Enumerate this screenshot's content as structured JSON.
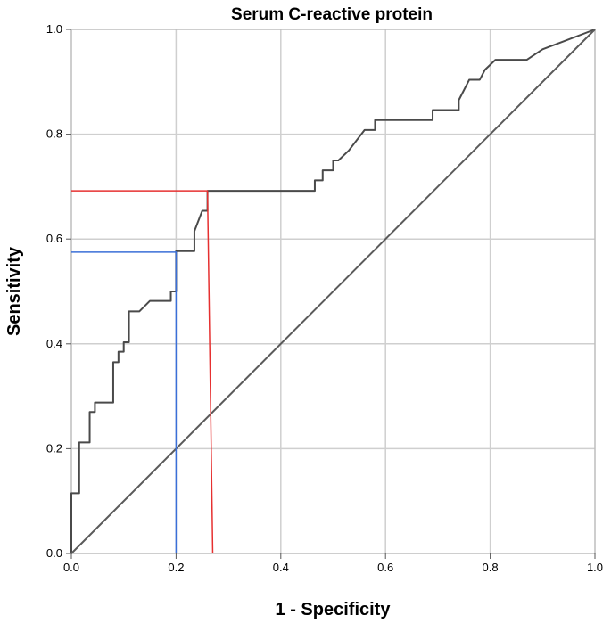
{
  "chart_data": {
    "type": "line",
    "title": "Serum C-reactive protein",
    "xlabel": "1 - Specificity",
    "ylabel": "Sensitivity",
    "xlim": [
      0,
      1
    ],
    "ylim": [
      0,
      1
    ],
    "grid": true,
    "x_ticks": [
      "0.0",
      "0.2",
      "0.4",
      "0.6",
      "0.8",
      "1.0"
    ],
    "y_ticks": [
      "0.0",
      "0.2",
      "0.4",
      "0.6",
      "0.8",
      "1.0"
    ],
    "series": [
      {
        "color": "#4a4a4a",
        "points": [
          [
            0,
            0
          ],
          [
            0,
            0.115
          ],
          [
            0.015,
            0.115
          ],
          [
            0.015,
            0.212
          ],
          [
            0.035,
            0.212
          ],
          [
            0.035,
            0.27
          ],
          [
            0.045,
            0.27
          ],
          [
            0.045,
            0.288
          ],
          [
            0.08,
            0.288
          ],
          [
            0.08,
            0.365
          ],
          [
            0.09,
            0.365
          ],
          [
            0.09,
            0.385
          ],
          [
            0.1,
            0.385
          ],
          [
            0.1,
            0.403
          ],
          [
            0.11,
            0.403
          ],
          [
            0.11,
            0.462
          ],
          [
            0.13,
            0.462
          ],
          [
            0.15,
            0.482
          ],
          [
            0.19,
            0.482
          ],
          [
            0.19,
            0.5
          ],
          [
            0.2,
            0.5
          ],
          [
            0.2,
            0.577
          ],
          [
            0.235,
            0.577
          ],
          [
            0.235,
            0.615
          ],
          [
            0.25,
            0.654
          ],
          [
            0.26,
            0.654
          ],
          [
            0.26,
            0.692
          ],
          [
            0.465,
            0.692
          ],
          [
            0.465,
            0.712
          ],
          [
            0.48,
            0.712
          ],
          [
            0.48,
            0.731
          ],
          [
            0.5,
            0.731
          ],
          [
            0.5,
            0.75
          ],
          [
            0.51,
            0.75
          ],
          [
            0.53,
            0.769
          ],
          [
            0.56,
            0.808
          ],
          [
            0.58,
            0.808
          ],
          [
            0.58,
            0.827
          ],
          [
            0.69,
            0.827
          ],
          [
            0.69,
            0.846
          ],
          [
            0.74,
            0.846
          ],
          [
            0.74,
            0.865
          ],
          [
            0.76,
            0.904
          ],
          [
            0.78,
            0.904
          ],
          [
            0.79,
            0.923
          ],
          [
            0.81,
            0.942
          ],
          [
            0.87,
            0.942
          ],
          [
            0.9,
            0.962
          ],
          [
            1.0,
            1.0
          ]
        ]
      },
      {
        "color": "#5a5a5a",
        "points": [
          [
            0,
            0
          ],
          [
            1,
            1
          ]
        ]
      }
    ],
    "reference_lines": [
      {
        "color": "#e63030",
        "points": [
          [
            0,
            0.692
          ],
          [
            0.26,
            0.692
          ],
          [
            0.27,
            0
          ]
        ]
      },
      {
        "color": "#3a6fd8",
        "points": [
          [
            0,
            0.575
          ],
          [
            0.2,
            0.575
          ],
          [
            0.2,
            0
          ]
        ]
      }
    ]
  }
}
